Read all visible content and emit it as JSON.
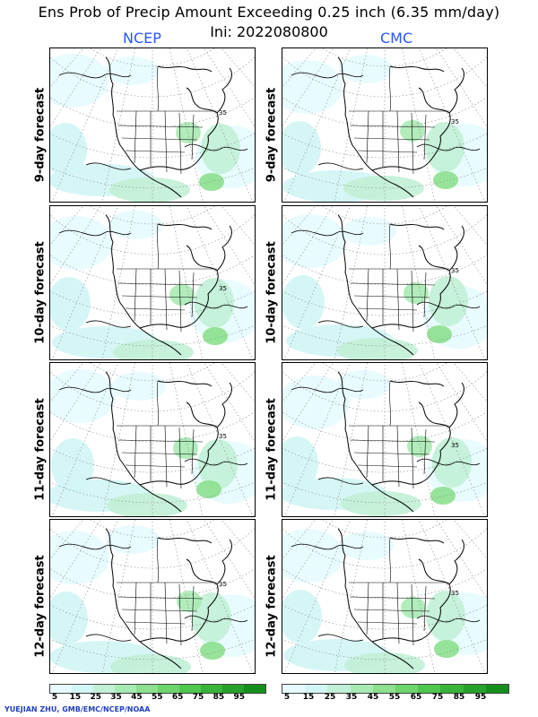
{
  "title": "Ens Prob of Precip Amount Exceeding 0.25 inch (6.35 mm/day)",
  "subtitle": "Ini: 2022080800",
  "models": [
    "NCEP",
    "CMC"
  ],
  "rows": [
    "9-day forecast",
    "10-day forecast",
    "11-day forecast",
    "12-day forecast"
  ],
  "contour_label": "35",
  "colorbar": {
    "ticks": [
      "5",
      "15",
      "25",
      "35",
      "45",
      "55",
      "65",
      "75",
      "85",
      "95"
    ],
    "colors": [
      "#e6fbff",
      "#d2f5f5",
      "#c2f0d6",
      "#a8eab4",
      "#8ce08e",
      "#6ed46c",
      "#4fc64e",
      "#38b43a",
      "#26a12a",
      "#148f1c"
    ]
  },
  "credit": "YUEJIAN ZHU, GMB/EMC/NCEP/NOAA",
  "colors": {
    "model_label": "#2a56ff",
    "credit": "#1f3fbf",
    "coast": "#000000",
    "grid": "#888888"
  }
}
